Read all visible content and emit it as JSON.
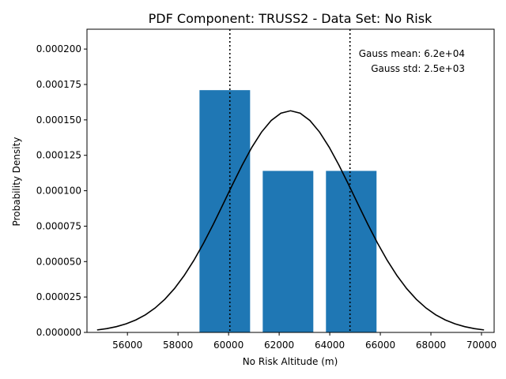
{
  "chart_data": {
    "type": "bar",
    "title": "PDF Component: TRUSS2 - Data Set: No Risk",
    "xlabel": "No Risk Altitude (m)",
    "ylabel": "Probability Density",
    "xlim": [
      54400,
      70500
    ],
    "ylim": [
      0,
      0.000214
    ],
    "x_ticks": [
      56000,
      58000,
      60000,
      62000,
      64000,
      66000,
      68000,
      70000
    ],
    "y_ticks": [
      0.0,
      2.5e-05,
      5e-05,
      7.5e-05,
      0.0001,
      0.000125,
      0.00015,
      0.000175,
      0.0002
    ],
    "x_tick_labels": [
      "56000",
      "58000",
      "60000",
      "62000",
      "64000",
      "66000",
      "68000",
      "70000"
    ],
    "y_tick_labels": [
      "0.000000",
      "0.000025",
      "0.000050",
      "0.000075",
      "0.000100",
      "0.000125",
      "0.000150",
      "0.000175",
      "0.000200"
    ],
    "bars": [
      {
        "left": 58850,
        "right": 60850,
        "value": 0.000171
      },
      {
        "left": 61350,
        "right": 63350,
        "value": 0.000114
      },
      {
        "left": 63850,
        "right": 65850,
        "value": 0.000114
      }
    ],
    "gaussian": {
      "mean": 62450,
      "std": 2550,
      "x_min": 54800,
      "x_max": 70100
    },
    "vertical_lines": [
      60050,
      64800
    ],
    "annotations": [
      "Gauss mean: 6.2e+04",
      "Gauss std: 2.5e+03"
    ],
    "colors": {
      "bars": "#1f77b4",
      "curve": "#000000",
      "vlines": "#000000"
    },
    "grid": false
  }
}
